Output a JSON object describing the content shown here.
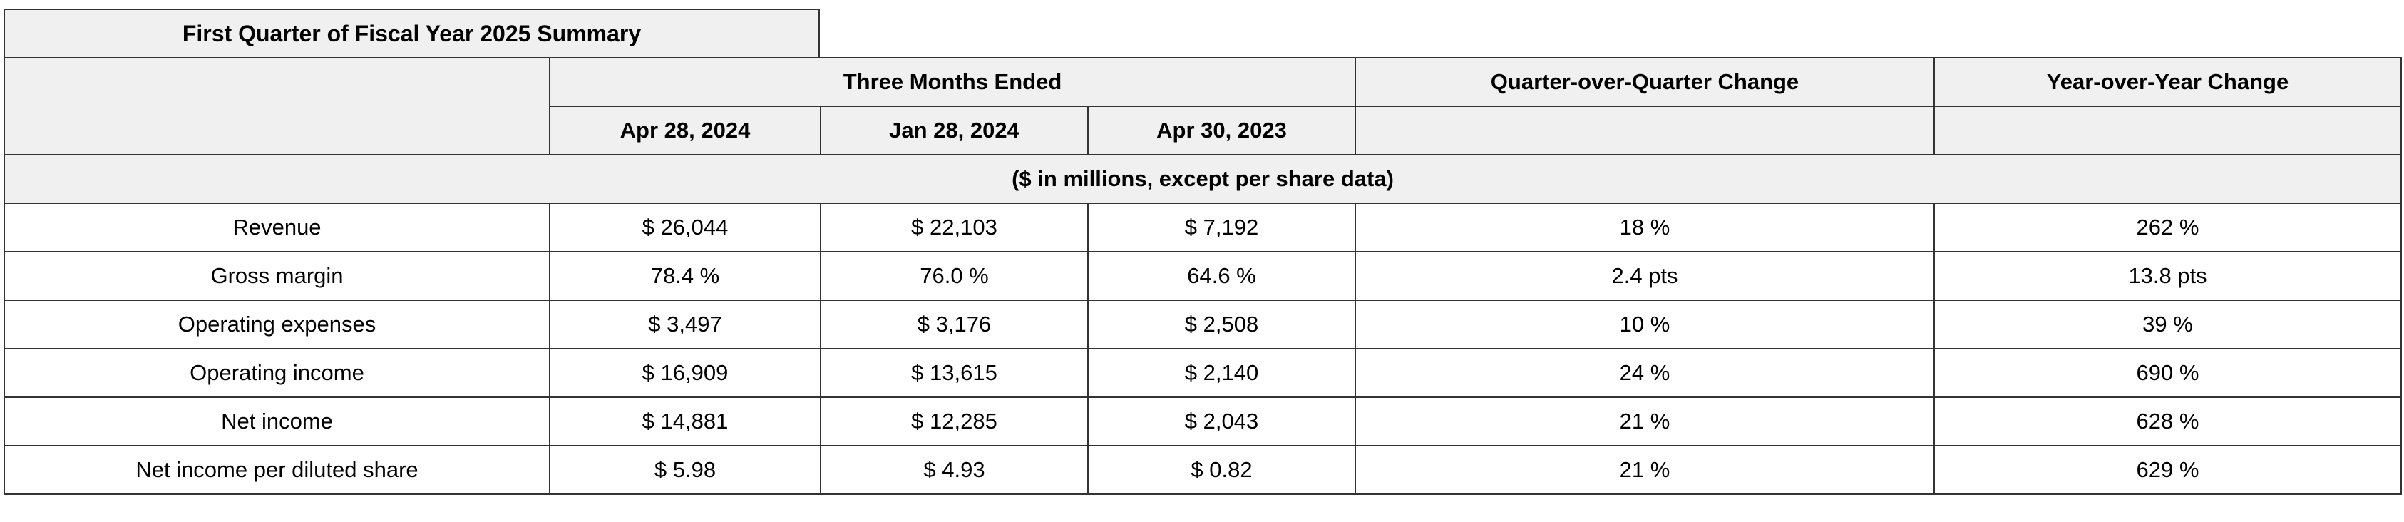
{
  "summary_title": "First Quarter of Fiscal Year 2025 Summary",
  "header": {
    "group_label": "Three Months Ended",
    "qoq_label": "Quarter-over-Quarter Change",
    "yoy_label": "Year-over-Year Change",
    "dates": [
      "Apr 28, 2024",
      "Jan 28, 2024",
      "Apr 30, 2023"
    ],
    "units_note": "($ in millions, except per share data)"
  },
  "rows": [
    {
      "label": "Revenue",
      "apr_2024": "$ 26,044",
      "jan_2024": "$ 22,103",
      "apr_2023": "$ 7,192",
      "qoq": "18 %",
      "yoy": "262 %"
    },
    {
      "label": "Gross margin",
      "apr_2024": "78.4 %",
      "jan_2024": "76.0 %",
      "apr_2023": "64.6 %",
      "qoq": "2.4 pts",
      "yoy": "13.8 pts"
    },
    {
      "label": "Operating expenses",
      "apr_2024": "$ 3,497",
      "jan_2024": "$ 3,176",
      "apr_2023": "$ 2,508",
      "qoq": "10 %",
      "yoy": "39 %"
    },
    {
      "label": "Operating income",
      "apr_2024": "$ 16,909",
      "jan_2024": "$ 13,615",
      "apr_2023": "$ 2,140",
      "qoq": "24 %",
      "yoy": "690 %"
    },
    {
      "label": "Net income",
      "apr_2024": "$ 14,881",
      "jan_2024": "$ 12,285",
      "apr_2023": "$ 2,043",
      "qoq": "21 %",
      "yoy": "628 %"
    },
    {
      "label": "Net income per diluted share",
      "apr_2024": "$ 5.98",
      "jan_2024": "$ 4.93",
      "apr_2023": "$ 0.82",
      "qoq": "21 %",
      "yoy": "629 %"
    }
  ]
}
